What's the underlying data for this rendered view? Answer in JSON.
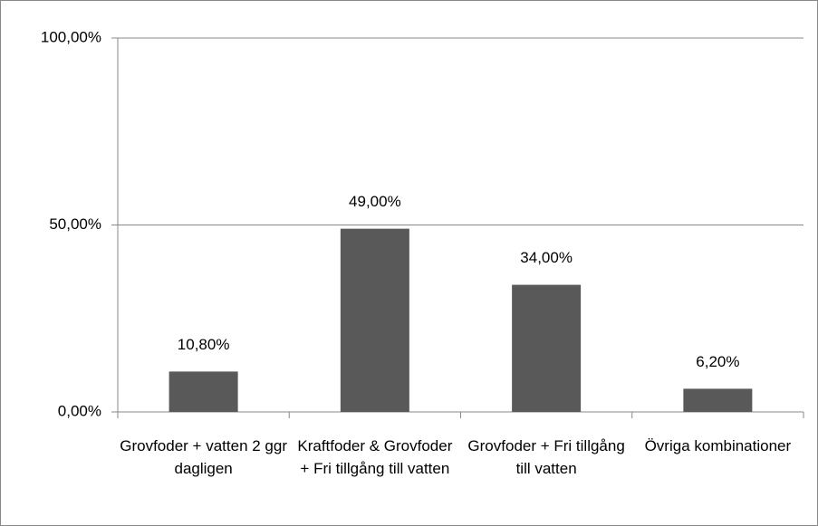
{
  "chart_data": {
    "type": "bar",
    "categories": [
      "Grovfoder + vatten 2 ggr dagligen",
      "Kraftfoder & Grovfoder + Fri tillgång till vatten",
      "Grovfoder + Fri tillgång till vatten",
      "Övriga kombinationer"
    ],
    "values": [
      10.8,
      49,
      34,
      6.2
    ],
    "value_labels": [
      "10,80%",
      "49,00%",
      "34,00%",
      "6,20%"
    ],
    "color": "#595959",
    "ylim": [
      0,
      100
    ],
    "yticks": [
      {
        "value": 0,
        "label": "0,00%"
      },
      {
        "value": 50,
        "label": "50,00%"
      },
      {
        "value": 100,
        "label": "100,00%"
      }
    ],
    "grid": true
  }
}
